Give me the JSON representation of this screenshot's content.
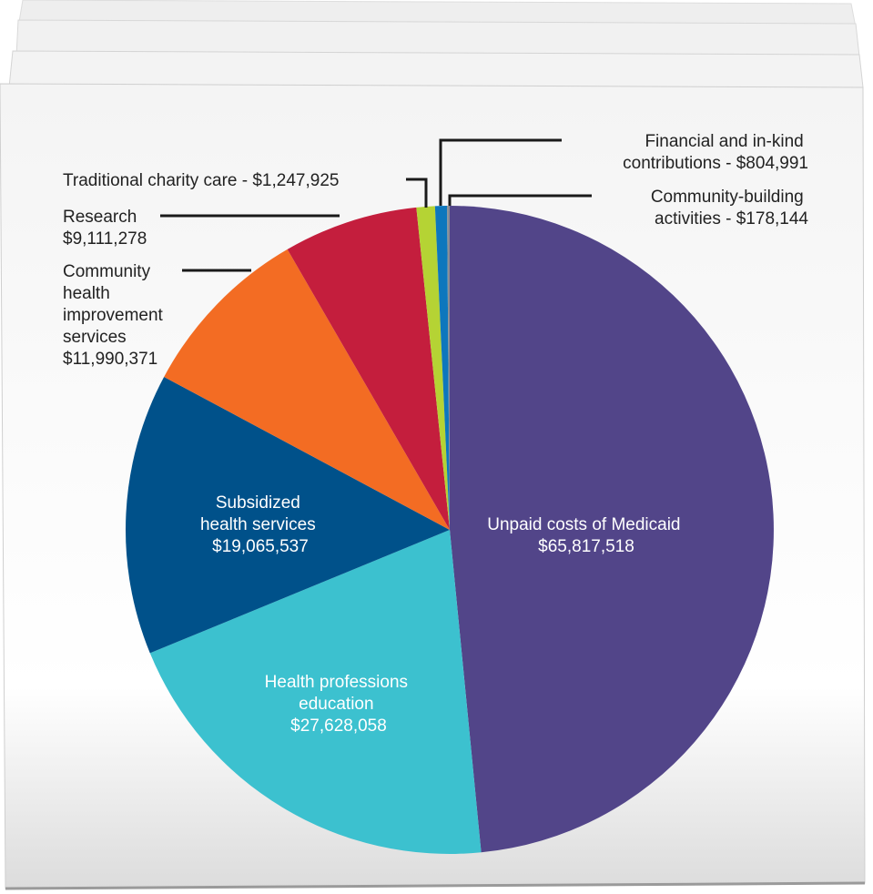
{
  "chart_data": {
    "type": "pie",
    "title": "",
    "start": "top",
    "direction": "clockwise",
    "slices": [
      {
        "name": "Unpaid costs of Medicaid",
        "value": 65817518,
        "value_label": "$65,817,518",
        "color": "#524589"
      },
      {
        "name": "Health professions education",
        "value": 27628058,
        "value_label": "$27,628,058",
        "color": "#3cc1cf"
      },
      {
        "name": "Subsidized health services",
        "value": 19065537,
        "value_label": "$19,065,537",
        "color": "#00518a"
      },
      {
        "name": "Community health improvement services",
        "value": 11990371,
        "value_label": "$11,990,371",
        "color": "#f36c23"
      },
      {
        "name": "Research",
        "value": 9111278,
        "value_label": "$9,111,278",
        "color": "#c41e3d"
      },
      {
        "name": "Traditional charity care",
        "value": 1247925,
        "value_label": "$1,247,925",
        "color": "#b5d334"
      },
      {
        "name": "Financial and in-kind contributions",
        "value": 804991,
        "value_label": "$804,991",
        "color": "#0d77bd"
      },
      {
        "name": "Community-building activities",
        "value": 178144,
        "value_label": "$178,144",
        "color": "#8a8f96"
      }
    ]
  },
  "labels": {
    "medicaid": [
      "Unpaid costs of Medicaid",
      "$65,817,518"
    ],
    "education": [
      "Health professions",
      "education",
      "$27,628,058"
    ],
    "subsidized": [
      "Subsidized",
      "health services",
      "$19,065,537"
    ],
    "community_health": [
      "Community",
      "health",
      "improvement",
      "services",
      "$11,990,371"
    ],
    "research": [
      "Research",
      "$9,111,278"
    ],
    "charity": [
      "Traditional charity care - $1,247,925"
    ],
    "financial": [
      "Financial and in-kind",
      "contributions - $804,991"
    ],
    "building": [
      "Community-building",
      "activities - $178,144"
    ]
  }
}
